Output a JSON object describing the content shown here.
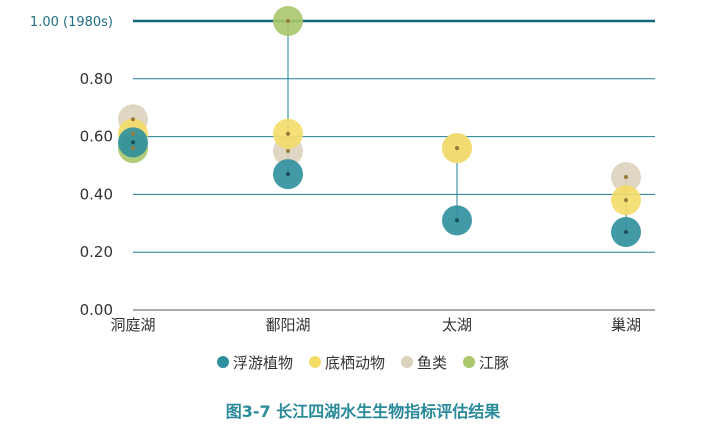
{
  "caption": "图3-7 长江四湖水生生物指标评估结果",
  "colors": {
    "plankton": "#2f8f9d",
    "benthos": "#f4dc68",
    "fish": "#dcd3bd",
    "porpoise": "#a9c86a",
    "stem": "#1f7f8f",
    "grid": "#1f7f8f",
    "reference_line": "#16697c"
  },
  "chart_data": {
    "type": "scatter",
    "title": "",
    "xlabel": "",
    "ylabel": "",
    "ylim": [
      0,
      1.0
    ],
    "y_ticks": [
      "0.00",
      "0.20",
      "0.40",
      "0.60",
      "0.80"
    ],
    "reference_line": {
      "value": 1.0,
      "label": "1.00 (1980s)"
    },
    "categories": [
      "洞庭湖",
      "鄱阳湖",
      "太湖",
      "巢湖"
    ],
    "series": [
      {
        "name": "浮游植物",
        "values": [
          0.58,
          0.47,
          0.31,
          0.27
        ]
      },
      {
        "name": "底栖动物",
        "values": [
          0.61,
          0.61,
          0.56,
          0.38
        ]
      },
      {
        "name": "鱼类",
        "values": [
          0.66,
          0.55,
          0.56,
          0.46
        ]
      },
      {
        "name": "江豚",
        "values": [
          0.56,
          1.0,
          null,
          null
        ]
      }
    ],
    "grid": true,
    "legend_position": "bottom"
  }
}
